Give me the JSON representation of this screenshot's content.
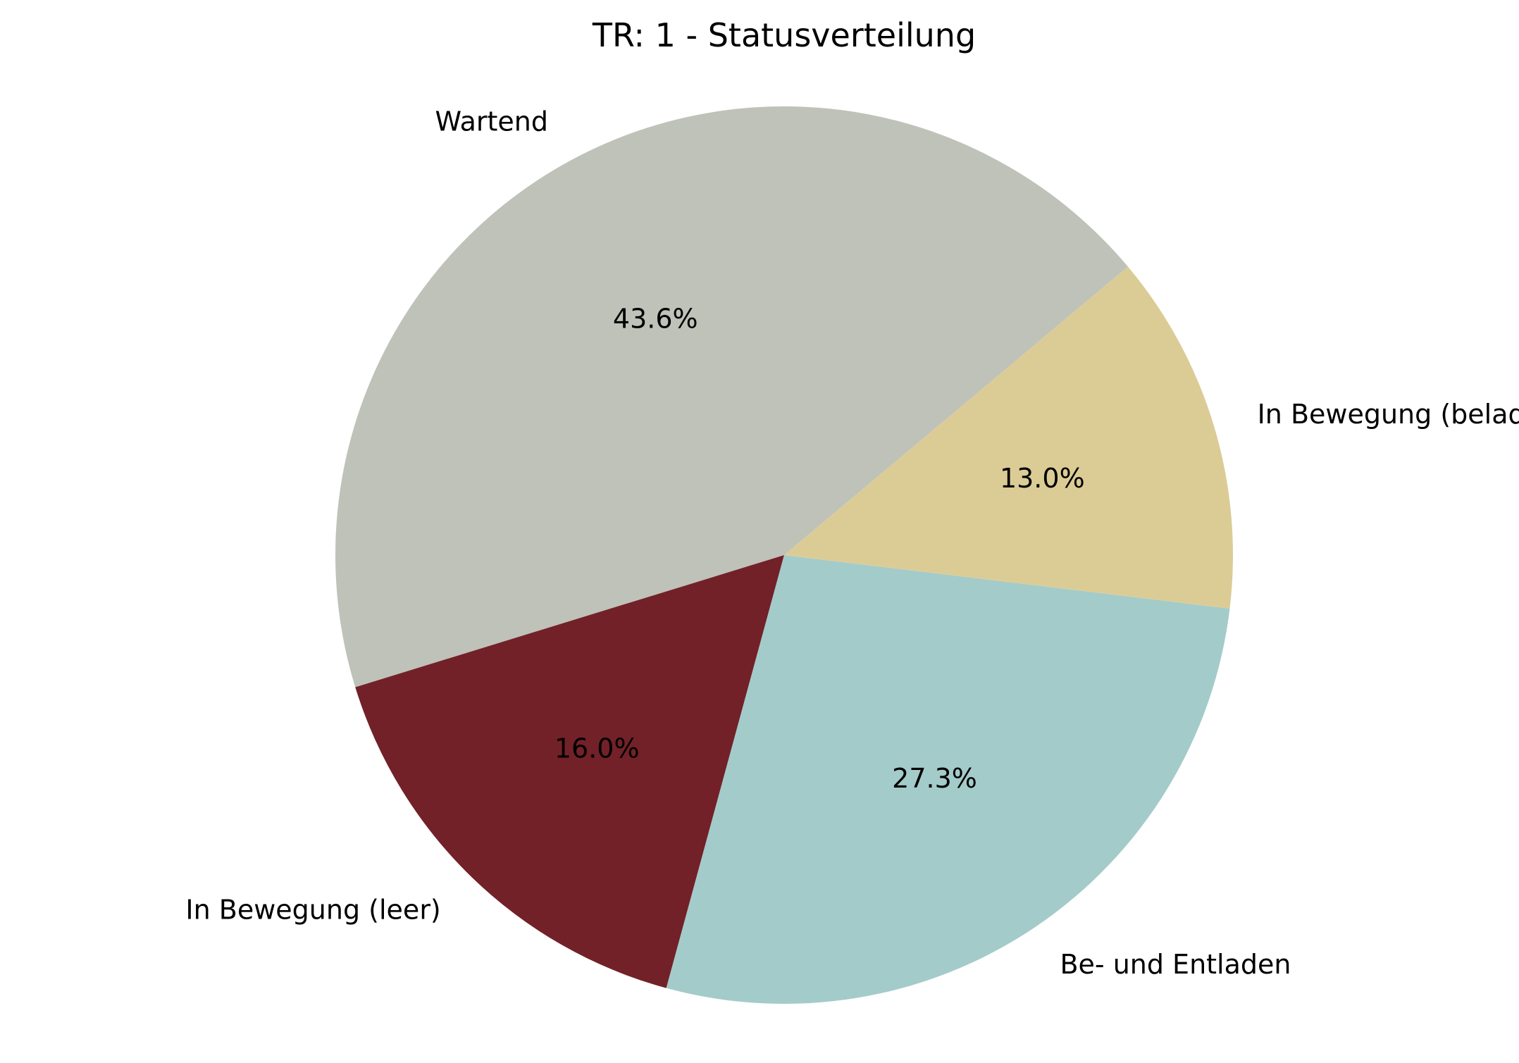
{
  "chart_data": {
    "type": "pie",
    "title": "TR: 1 - Statusverteilung",
    "start_angle_deg": 40,
    "direction": "counterclockwise",
    "slices": [
      {
        "label": "Wartend",
        "value": 43.6,
        "pct_label": "43.6%",
        "color": "#bfc2b9"
      },
      {
        "label": "In Bewegung (leer)",
        "value": 16.0,
        "pct_label": "16.0%",
        "color": "#722128"
      },
      {
        "label": "Be- und Entladen",
        "value": 27.3,
        "pct_label": "27.3%",
        "color": "#a3cbca"
      },
      {
        "label": "In Bewegung (beladen)",
        "value": 13.0,
        "pct_label": "13.0%",
        "color": "#dbcc96"
      }
    ]
  }
}
